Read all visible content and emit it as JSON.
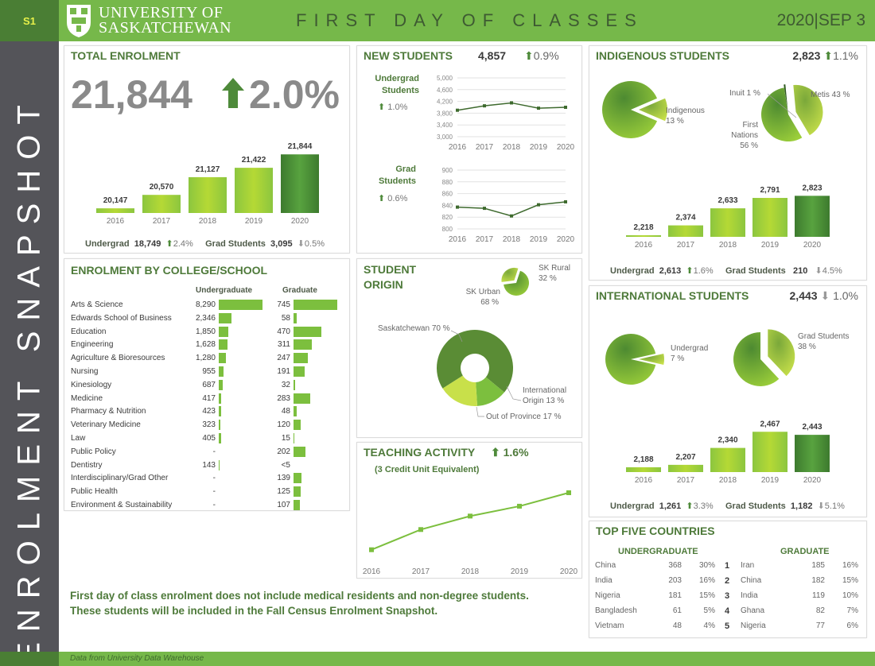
{
  "header": {
    "page_code": "S1",
    "university_line1": "UNIVERSITY OF",
    "university_line2": "SASKATCHEWAN",
    "title": "FIRST DAY OF CLASSES",
    "date": "2020|SEP 3"
  },
  "sidebar": {
    "label": "ENROLMENT SNAPSHOT"
  },
  "colors": {
    "brand_green": "#76b84a",
    "dark_green": "#4a7e34",
    "title_green": "#4e7a3a",
    "sidebar_grey": "#545459",
    "down_grey": "#999999"
  },
  "total_enrolment": {
    "title": "TOTAL ENROLMENT",
    "value": "21,844",
    "change": "2.0%",
    "change_dir": "up",
    "undergrad_label": "Undergrad",
    "undergrad_value": "18,749",
    "undergrad_change": "2.4%",
    "grad_label": "Grad Students",
    "grad_value": "3,095",
    "grad_change": "0.5%"
  },
  "new_students": {
    "title": "NEW STUDENTS",
    "value": "4,857",
    "change": "0.9%",
    "undergrad_label_1": "Undergrad",
    "undergrad_label_2": "Students",
    "undergrad_change": "1.0%",
    "grad_label_1": "Grad",
    "grad_label_2": "Students",
    "grad_change": "0.6%"
  },
  "indigenous": {
    "title": "INDIGENOUS STUDENTS",
    "value": "2,823",
    "change": "1.1%",
    "undergrad_label": "Undergrad",
    "undergrad_value": "2,613",
    "undergrad_change": "1.6%",
    "grad_label": "Grad Students",
    "grad_value": "210",
    "grad_change": "4.5%"
  },
  "international": {
    "title": "INTERNATIONAL STUDENTS",
    "value": "2,443",
    "change": "1.0%",
    "undergrad_label": "Undergrad",
    "undergrad_value": "1,261",
    "undergrad_change": "3.3%",
    "grad_label": "Grad Students",
    "grad_value": "1,182",
    "grad_change": "5.1%"
  },
  "college": {
    "title": "ENROLMENT BY COLLEGE/SCHOOL",
    "ug_header": "Undergraduate",
    "grad_header": "Graduate",
    "rows": [
      {
        "name": "Arts & Science",
        "ug": "8,290",
        "ugv": 8290,
        "gr": "745",
        "grv": 745
      },
      {
        "name": "Edwards School of Business",
        "ug": "2,346",
        "ugv": 2346,
        "gr": "58",
        "grv": 58
      },
      {
        "name": "Education",
        "ug": "1,850",
        "ugv": 1850,
        "gr": "470",
        "grv": 470
      },
      {
        "name": "Engineering",
        "ug": "1,628",
        "ugv": 1628,
        "gr": "311",
        "grv": 311
      },
      {
        "name": "Agriculture & Bioresources",
        "ug": "1,280",
        "ugv": 1280,
        "gr": "247",
        "grv": 247
      },
      {
        "name": "Nursing",
        "ug": "955",
        "ugv": 955,
        "gr": "191",
        "grv": 191
      },
      {
        "name": "Kinesiology",
        "ug": "687",
        "ugv": 687,
        "gr": "32",
        "grv": 32
      },
      {
        "name": "Medicine",
        "ug": "417",
        "ugv": 417,
        "gr": "283",
        "grv": 283
      },
      {
        "name": "Pharmacy & Nutrition",
        "ug": "423",
        "ugv": 423,
        "gr": "48",
        "grv": 48
      },
      {
        "name": "Veterinary Medicine",
        "ug": "323",
        "ugv": 323,
        "gr": "120",
        "grv": 120
      },
      {
        "name": "Law",
        "ug": "405",
        "ugv": 405,
        "gr": "15",
        "grv": 15
      },
      {
        "name": "Public Policy",
        "ug": "-",
        "ugv": 0,
        "gr": "202",
        "grv": 202
      },
      {
        "name": "Dentistry",
        "ug": "143",
        "ugv": 143,
        "gr": "<5",
        "grv": 0
      },
      {
        "name": "Interdisciplinary/Grad Other",
        "ug": "-",
        "ugv": 0,
        "gr": "139",
        "grv": 139
      },
      {
        "name": "Public Health",
        "ug": "-",
        "ugv": 0,
        "gr": "125",
        "grv": 125
      },
      {
        "name": "Environment & Sustainability",
        "ug": "-",
        "ugv": 0,
        "gr": "107",
        "grv": 107
      }
    ]
  },
  "student_origin": {
    "title_1": "STUDENT",
    "title_2": "ORIGIN"
  },
  "teaching": {
    "title": "TEACHING ACTIVITY",
    "change": "1.6%",
    "subtitle": "(3 Credit Unit Equivalent)"
  },
  "top_countries": {
    "title": "TOP FIVE COUNTRIES",
    "ug_header": "UNDERGRADUATE",
    "grad_header": "GRADUATE",
    "rows": [
      {
        "rank": "1",
        "ug_country": "China",
        "ug_n": "368",
        "ug_pct": "30%",
        "gr_country": "Iran",
        "gr_n": "185",
        "gr_pct": "16%"
      },
      {
        "rank": "2",
        "ug_country": "India",
        "ug_n": "203",
        "ug_pct": "16%",
        "gr_country": "China",
        "gr_n": "182",
        "gr_pct": "15%"
      },
      {
        "rank": "3",
        "ug_country": "Nigeria",
        "ug_n": "181",
        "ug_pct": "15%",
        "gr_country": "India",
        "gr_n": "119",
        "gr_pct": "10%"
      },
      {
        "rank": "4",
        "ug_country": "Bangladesh",
        "ug_n": "61",
        "ug_pct": "5%",
        "gr_country": "Ghana",
        "gr_n": "82",
        "gr_pct": "7%"
      },
      {
        "rank": "5",
        "ug_country": "Vietnam",
        "ug_n": "48",
        "ug_pct": "4%",
        "gr_country": "Nigeria",
        "gr_n": "77",
        "gr_pct": "6%"
      }
    ]
  },
  "note": {
    "line1": "First day of class enrolment does not include medical residents and non-degree students.",
    "line2": "These students will be included in the Fall Census Enrolment Snapshot."
  },
  "footer": {
    "source": "Data from University Data Warehouse"
  },
  "chart_data": [
    {
      "id": "total",
      "type": "bar",
      "title": "TOTAL ENROLMENT",
      "categories": [
        "2016",
        "2017",
        "2018",
        "2019",
        "2020"
      ],
      "values": [
        20147,
        20570,
        21127,
        21422,
        21844
      ],
      "labels": [
        "20,147",
        "20,570",
        "21,127",
        "21,422",
        "21,844"
      ],
      "ylim": [
        20000,
        22000
      ]
    },
    {
      "id": "new_ug",
      "type": "line",
      "title": "Undergrad Students",
      "categories": [
        "2016",
        "2017",
        "2018",
        "2019",
        "2020"
      ],
      "values": [
        3900,
        4050,
        4150,
        3970,
        4000
      ],
      "ylim": [
        3000,
        5000
      ],
      "yticks": [
        "5,000",
        "4,600",
        "4,200",
        "3,800",
        "3,400",
        "3,000"
      ],
      "ytick_values": [
        5000,
        4600,
        4200,
        3800,
        3400,
        3000
      ]
    },
    {
      "id": "new_grad",
      "type": "line",
      "title": "Grad Students",
      "categories": [
        "2016",
        "2017",
        "2018",
        "2019",
        "2020"
      ],
      "values": [
        837,
        835,
        822,
        841,
        846
      ],
      "ylim": [
        800,
        900
      ],
      "yticks": [
        "900",
        "880",
        "860",
        "840",
        "820",
        "800"
      ],
      "ytick_values": [
        900,
        880,
        860,
        840,
        820,
        800
      ]
    },
    {
      "id": "indig_pie",
      "type": "pie",
      "slices": [
        {
          "label": "Indigenous",
          "value": 13,
          "text": "13 %"
        },
        {
          "label": "Non-Indigenous",
          "value": 87,
          "text": ""
        }
      ]
    },
    {
      "id": "indig_groups",
      "type": "pie",
      "slices": [
        {
          "label": "First Nations",
          "value": 56,
          "text": "56 %"
        },
        {
          "label": "Inuit",
          "value": 1,
          "text": "1 %"
        },
        {
          "label": "Metis",
          "value": 43,
          "text": "43 %"
        }
      ]
    },
    {
      "id": "indig_bar",
      "type": "bar",
      "title": "INDIGENOUS STUDENTS",
      "categories": [
        "2016",
        "2017",
        "2018",
        "2019",
        "2020"
      ],
      "values": [
        2218,
        2374,
        2633,
        2791,
        2823
      ],
      "labels": [
        "2,218",
        "2,374",
        "2,633",
        "2,791",
        "2,823"
      ],
      "ylim": [
        2200,
        2900
      ]
    },
    {
      "id": "origin_sk",
      "type": "pie",
      "slices": [
        {
          "label": "SK Urban",
          "value": 68,
          "text": "68 %"
        },
        {
          "label": "SK Rural",
          "value": 32,
          "text": "32 %"
        }
      ]
    },
    {
      "id": "origin_donut",
      "type": "pie",
      "slices": [
        {
          "label": "Saskatchewan",
          "value": 70,
          "text": "70 %"
        },
        {
          "label": "International Origin",
          "value": 13,
          "text": "13 %"
        },
        {
          "label": "Out of Province",
          "value": 17,
          "text": "17 %"
        }
      ]
    },
    {
      "id": "teaching",
      "type": "line",
      "title": "TEACHING ACTIVITY",
      "categories": [
        "2016",
        "2017",
        "2018",
        "2019",
        "2020"
      ],
      "values": [
        0,
        0.45,
        0.75,
        0.97,
        1.27
      ],
      "ylim": [
        -0.2,
        1.5
      ],
      "note": "relative values; no y-axis shown"
    },
    {
      "id": "intl_ug_pie",
      "type": "pie",
      "slices": [
        {
          "label": "Undergrad",
          "value": 7,
          "text": "7 %"
        },
        {
          "label": "Other",
          "value": 93,
          "text": ""
        }
      ]
    },
    {
      "id": "intl_grad_pie",
      "type": "pie",
      "slices": [
        {
          "label": "Grad Students",
          "value": 38,
          "text": "38 %"
        },
        {
          "label": "Other",
          "value": 62,
          "text": ""
        }
      ]
    },
    {
      "id": "intl_bar",
      "type": "bar",
      "title": "INTERNATIONAL STUDENTS",
      "categories": [
        "2016",
        "2017",
        "2018",
        "2019",
        "2020"
      ],
      "values": [
        2188,
        2207,
        2340,
        2467,
        2443
      ],
      "labels": [
        "2,188",
        "2,207",
        "2,340",
        "2,467",
        "2,443"
      ],
      "ylim": [
        2150,
        2500
      ]
    }
  ]
}
